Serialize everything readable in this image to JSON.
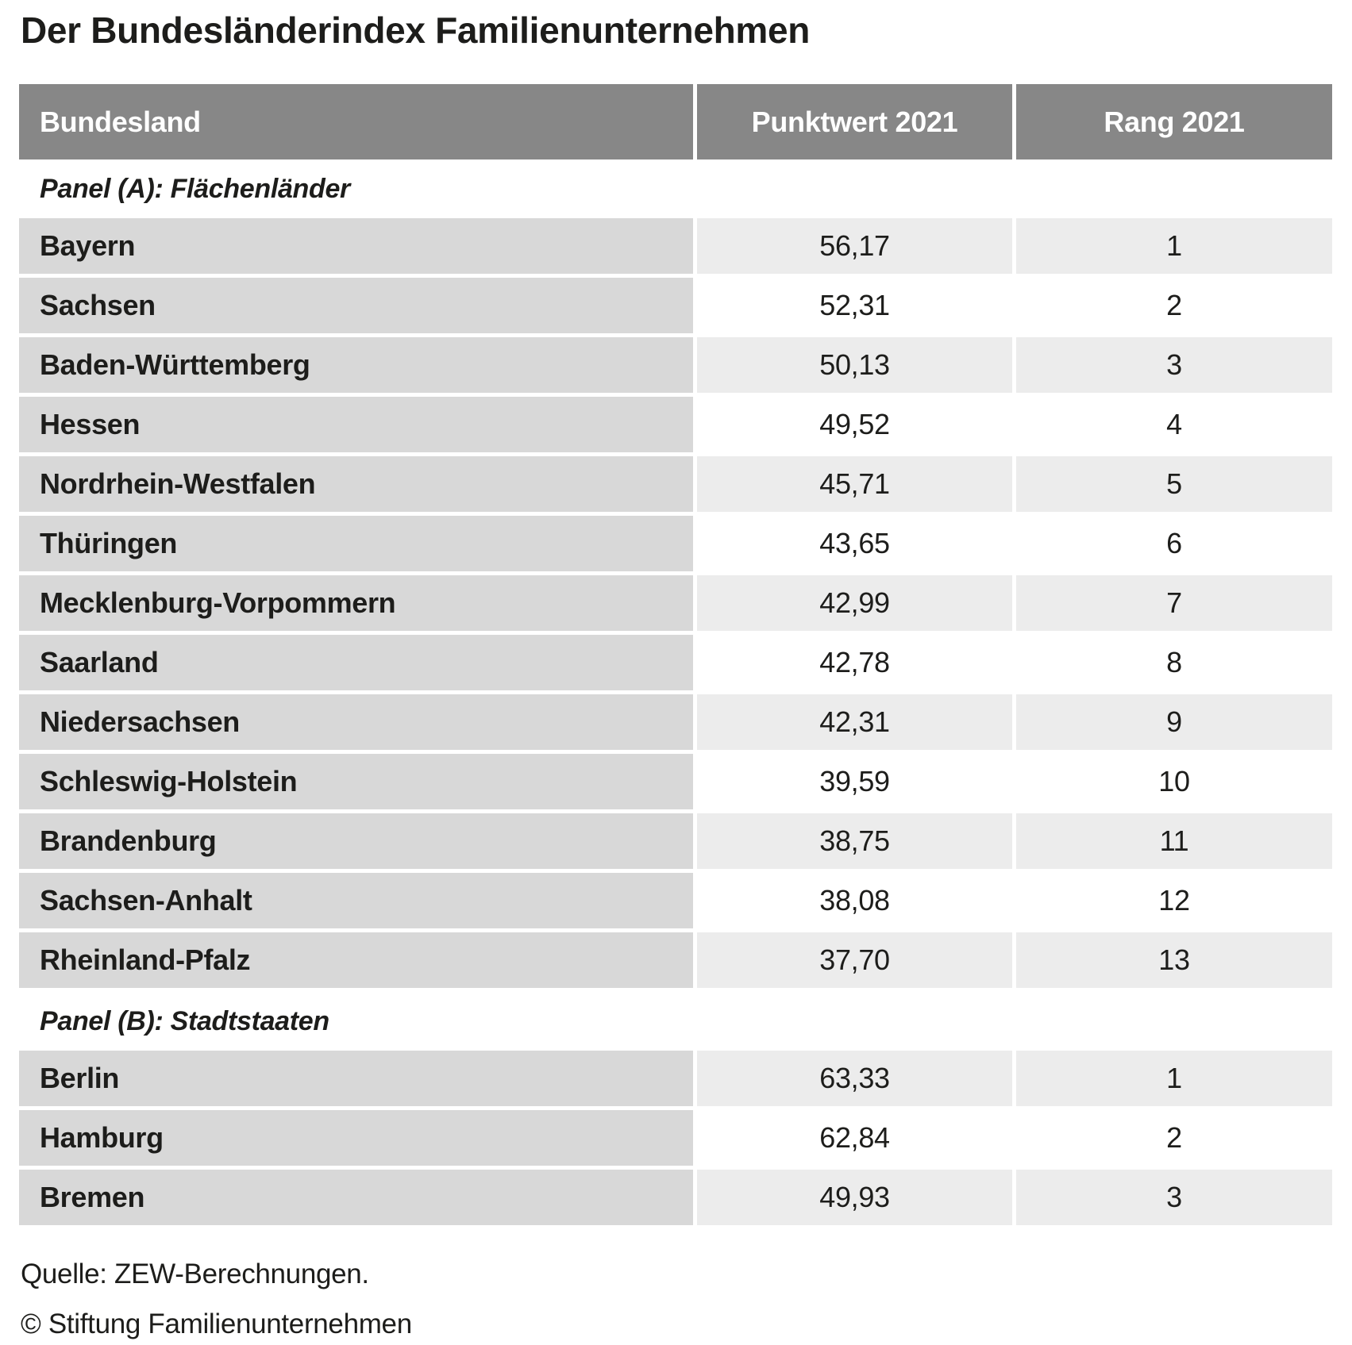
{
  "title": "Der Bundesländerindex Familienunternehmen",
  "header": {
    "col_bundesland": "Bundesland",
    "col_punktwert": "Punktwert 2021",
    "col_rang": "Rang 2021"
  },
  "panels": [
    {
      "heading": "Panel (A): Flächenländer",
      "rows": [
        {
          "bundesland": "Bayern",
          "punktwert": "56,17",
          "rang": "1"
        },
        {
          "bundesland": "Sachsen",
          "punktwert": "52,31",
          "rang": "2"
        },
        {
          "bundesland": "Baden-Württemberg",
          "punktwert": "50,13",
          "rang": "3"
        },
        {
          "bundesland": "Hessen",
          "punktwert": "49,52",
          "rang": "4"
        },
        {
          "bundesland": "Nordrhein-Westfalen",
          "punktwert": "45,71",
          "rang": "5"
        },
        {
          "bundesland": "Thüringen",
          "punktwert": "43,65",
          "rang": "6"
        },
        {
          "bundesland": "Mecklenburg-Vorpommern",
          "punktwert": "42,99",
          "rang": "7"
        },
        {
          "bundesland": "Saarland",
          "punktwert": "42,78",
          "rang": "8"
        },
        {
          "bundesland": "Niedersachsen",
          "punktwert": "42,31",
          "rang": "9"
        },
        {
          "bundesland": "Schleswig-Holstein",
          "punktwert": "39,59",
          "rang": "10"
        },
        {
          "bundesland": "Brandenburg",
          "punktwert": "38,75",
          "rang": "11"
        },
        {
          "bundesland": "Sachsen-Anhalt",
          "punktwert": "38,08",
          "rang": "12"
        },
        {
          "bundesland": "Rheinland-Pfalz",
          "punktwert": "37,70",
          "rang": "13"
        }
      ]
    },
    {
      "heading": "Panel (B): Stadtstaaten",
      "rows": [
        {
          "bundesland": "Berlin",
          "punktwert": "63,33",
          "rang": "1"
        },
        {
          "bundesland": "Hamburg",
          "punktwert": "62,84",
          "rang": "2"
        },
        {
          "bundesland": "Bremen",
          "punktwert": "49,93",
          "rang": "3"
        }
      ]
    }
  ],
  "footer": {
    "source": "Quelle: ZEW-Berechnungen.",
    "copyright": "© Stiftung Familienunternehmen"
  },
  "colors": {
    "header_bg": "#878787",
    "header_text": "#ffffff",
    "row_label_bg": "#d8d8d8",
    "value_shaded_bg": "#ececec",
    "value_plain_bg": "#ffffff",
    "text": "#1d1d1b",
    "page_bg": "#ffffff"
  },
  "chart_data": {
    "type": "table",
    "title": "Der Bundesländerindex Familienunternehmen",
    "columns": [
      "Bundesland",
      "Punktwert 2021",
      "Rang 2021"
    ],
    "sections": [
      {
        "label": "Panel (A): Flächenländer",
        "rows": [
          [
            "Bayern",
            56.17,
            1
          ],
          [
            "Sachsen",
            52.31,
            2
          ],
          [
            "Baden-Württemberg",
            50.13,
            3
          ],
          [
            "Hessen",
            49.52,
            4
          ],
          [
            "Nordrhein-Westfalen",
            45.71,
            5
          ],
          [
            "Thüringen",
            43.65,
            6
          ],
          [
            "Mecklenburg-Vorpommern",
            42.99,
            7
          ],
          [
            "Saarland",
            42.78,
            8
          ],
          [
            "Niedersachsen",
            42.31,
            9
          ],
          [
            "Schleswig-Holstein",
            39.59,
            10
          ],
          [
            "Brandenburg",
            38.75,
            11
          ],
          [
            "Sachsen-Anhalt",
            38.08,
            12
          ],
          [
            "Rheinland-Pfalz",
            37.7,
            13
          ]
        ]
      },
      {
        "label": "Panel (B): Stadtstaaten",
        "rows": [
          [
            "Berlin",
            63.33,
            1
          ],
          [
            "Hamburg",
            62.84,
            2
          ],
          [
            "Bremen",
            49.93,
            3
          ]
        ]
      }
    ],
    "number_format": "decimal-comma",
    "source": "Quelle: ZEW-Berechnungen.",
    "copyright": "© Stiftung Familienunternehmen"
  }
}
